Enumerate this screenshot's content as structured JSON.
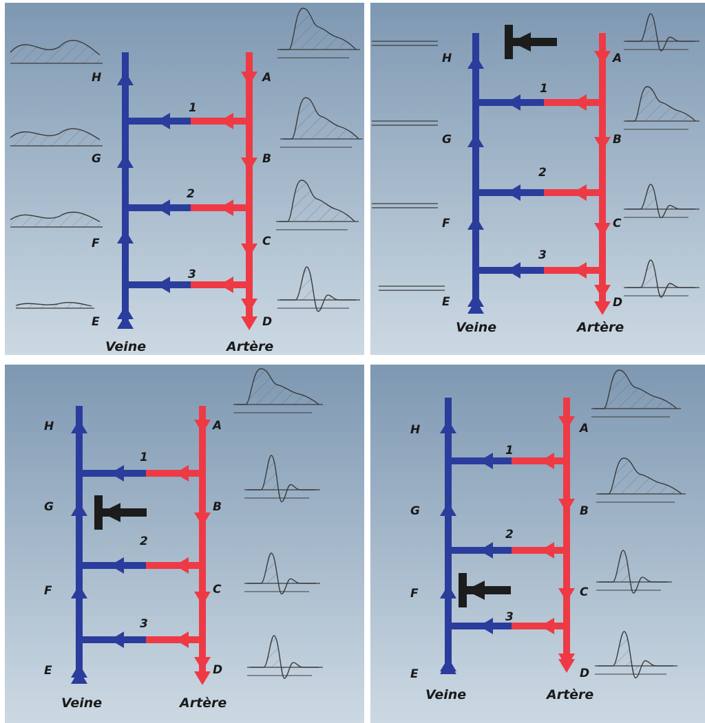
{
  "colors": {
    "panel_top": "#7e98b2",
    "panel_bottom": "#ccd9e3",
    "vein": "#2a3c9c",
    "artery": "#ee3a45",
    "clamp": "#1c1c1c",
    "wave": "#3a3a3a"
  },
  "panels": [
    {
      "id": "normal",
      "clamp": "none",
      "vein_label": "Veine",
      "artery_label": "Artère",
      "vein_points": [
        "H",
        "G",
        "F",
        "E"
      ],
      "artery_points": [
        "A",
        "B",
        "C",
        "D"
      ],
      "branches": [
        "1",
        "2",
        "3"
      ],
      "venous_waves": "flow",
      "arterial_waves": [
        "broad",
        "broad",
        "broad",
        "triphasic"
      ]
    },
    {
      "id": "clamp-proximal",
      "clamp": "above-1",
      "vein_label": "Veine",
      "artery_label": "Artère",
      "vein_points": [
        "H",
        "G",
        "F",
        "E"
      ],
      "artery_points": [
        "A",
        "B",
        "C",
        "D"
      ],
      "branches": [
        "1",
        "2",
        "3"
      ],
      "venous_waves": "flat",
      "arterial_waves": [
        "triphasic",
        "broad",
        "triphasic",
        "triphasic"
      ]
    },
    {
      "id": "clamp-1-2",
      "clamp": "between-1-2",
      "vein_label": "Veine",
      "artery_label": "Artère",
      "vein_points": [
        "H",
        "G",
        "F",
        "E"
      ],
      "artery_points": [
        "A",
        "B",
        "C",
        "D"
      ],
      "branches": [
        "1",
        "2",
        "3"
      ],
      "venous_waves": "none",
      "arterial_waves": [
        "broad",
        "triphasic",
        "triphasic",
        "triphasic"
      ]
    },
    {
      "id": "clamp-2-3",
      "clamp": "between-2-3",
      "vein_label": "Veine",
      "artery_label": "Artère",
      "vein_points": [
        "H",
        "G",
        "F",
        "E"
      ],
      "artery_points": [
        "A",
        "B",
        "C",
        "D"
      ],
      "branches": [
        "1",
        "2",
        "3"
      ],
      "venous_waves": "none",
      "arterial_waves": [
        "broad",
        "broad",
        "triphasic",
        "triphasic"
      ]
    }
  ]
}
